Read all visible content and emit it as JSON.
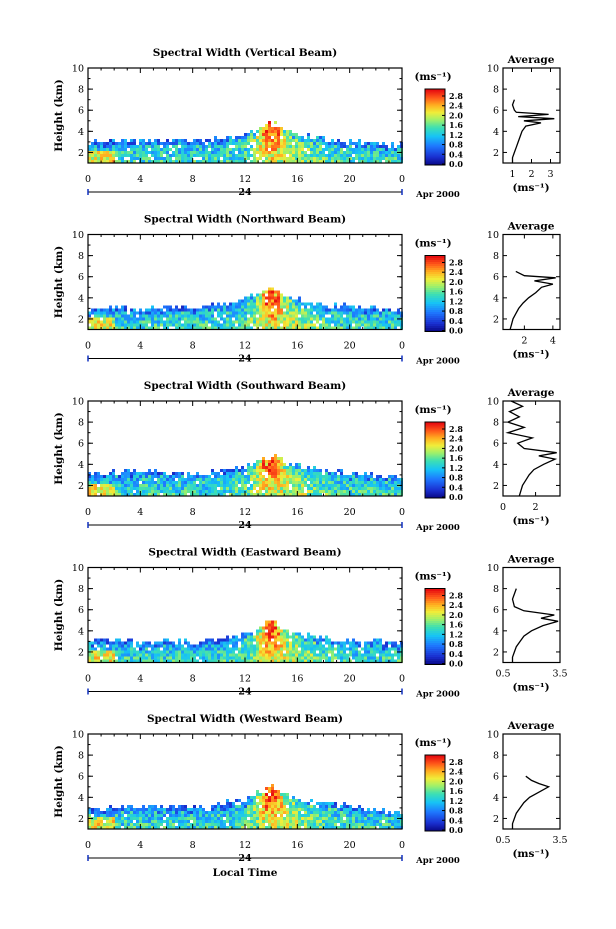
{
  "figure": {
    "date_label": "Apr 2000",
    "day_label": "24",
    "xlabel": "Local Time",
    "ylabel": "Height (km)",
    "colorbar_unit": "(ms⁻¹)",
    "colorbar_ticks": [
      "2.8",
      "2.4",
      "2.0",
      "1.6",
      "1.2",
      "0.8",
      "0.4",
      "0.0"
    ],
    "avg_title": "Average",
    "avg_unit": "(ms⁻¹)"
  },
  "chart_data": [
    {
      "type": "heatmap",
      "title": "Spectral Width (Vertical Beam)",
      "xlabel": "",
      "ylabel": "Height (km)",
      "x_ticks": [
        "0",
        "4",
        "8",
        "12",
        "16",
        "20",
        "0"
      ],
      "xlim": [
        0,
        24
      ],
      "y_ticks": [
        "2",
        "4",
        "6",
        "8",
        "10"
      ],
      "ylim": [
        1,
        10
      ],
      "colorbar_range": [
        0.0,
        3.0
      ],
      "top_height_profile": [
        [
          0,
          3.1
        ],
        [
          2,
          3.3
        ],
        [
          4,
          3.2
        ],
        [
          6,
          3.4
        ],
        [
          8,
          3.3
        ],
        [
          10,
          3.5
        ],
        [
          12,
          4.0
        ],
        [
          13,
          4.5
        ],
        [
          14,
          5.0
        ],
        [
          15,
          4.3
        ],
        [
          16,
          3.8
        ],
        [
          18,
          3.4
        ],
        [
          20,
          3.2
        ],
        [
          22,
          3.0
        ],
        [
          24,
          2.8
        ]
      ],
      "average_profile": {
        "x_ticks": [
          "1",
          "2",
          "3"
        ],
        "xlim": [
          0.5,
          3.5
        ],
        "ylim": [
          1,
          10
        ],
        "points": [
          [
            1.0,
            1.0
          ],
          [
            1.0,
            1.5
          ],
          [
            1.1,
            2.0
          ],
          [
            1.2,
            2.5
          ],
          [
            1.3,
            3.0
          ],
          [
            1.4,
            3.5
          ],
          [
            1.5,
            4.0
          ],
          [
            1.7,
            4.5
          ],
          [
            2.5,
            4.8
          ],
          [
            1.6,
            5.0
          ],
          [
            3.2,
            5.2
          ],
          [
            1.3,
            5.4
          ],
          [
            2.9,
            5.6
          ],
          [
            1.2,
            5.8
          ],
          [
            1.1,
            6.0
          ],
          [
            1.0,
            6.5
          ],
          [
            1.1,
            7.0
          ]
        ]
      }
    },
    {
      "type": "heatmap",
      "title": "Spectral Width (Northward Beam)",
      "xlabel": "",
      "ylabel": "Height (km)",
      "x_ticks": [
        "0",
        "4",
        "8",
        "12",
        "16",
        "20",
        "0"
      ],
      "xlim": [
        0,
        24
      ],
      "y_ticks": [
        "2",
        "4",
        "6",
        "8",
        "10"
      ],
      "ylim": [
        1,
        10
      ],
      "colorbar_range": [
        0.0,
        3.0
      ],
      "top_height_profile": [
        [
          0,
          3.0
        ],
        [
          2,
          3.2
        ],
        [
          4,
          3.1
        ],
        [
          6,
          3.3
        ],
        [
          8,
          3.2
        ],
        [
          10,
          3.5
        ],
        [
          12,
          4.0
        ],
        [
          13,
          4.6
        ],
        [
          14,
          5.2
        ],
        [
          15,
          4.4
        ],
        [
          16,
          3.9
        ],
        [
          18,
          3.5
        ],
        [
          20,
          3.3
        ],
        [
          22,
          3.1
        ],
        [
          24,
          2.9
        ]
      ],
      "average_profile": {
        "x_ticks": [
          "2",
          "4"
        ],
        "xlim": [
          0.5,
          4.5
        ],
        "ylim": [
          1,
          10
        ],
        "points": [
          [
            1.0,
            1.0
          ],
          [
            1.1,
            1.5
          ],
          [
            1.2,
            2.0
          ],
          [
            1.4,
            2.5
          ],
          [
            1.6,
            3.0
          ],
          [
            1.9,
            3.5
          ],
          [
            2.3,
            4.0
          ],
          [
            2.8,
            4.5
          ],
          [
            3.2,
            5.0
          ],
          [
            4.0,
            5.3
          ],
          [
            2.7,
            5.6
          ],
          [
            4.2,
            5.9
          ],
          [
            2.0,
            6.1
          ],
          [
            1.4,
            6.5
          ]
        ]
      }
    },
    {
      "type": "heatmap",
      "title": "Spectral Width (Southward Beam)",
      "xlabel": "",
      "ylabel": "Height (km)",
      "x_ticks": [
        "0",
        "4",
        "8",
        "12",
        "16",
        "20",
        "0"
      ],
      "xlim": [
        0,
        24
      ],
      "y_ticks": [
        "2",
        "4",
        "6",
        "8",
        "10"
      ],
      "ylim": [
        1,
        10
      ],
      "colorbar_range": [
        0.0,
        3.0
      ],
      "top_height_profile": [
        [
          0,
          3.2
        ],
        [
          2,
          3.4
        ],
        [
          4,
          3.6
        ],
        [
          6,
          3.4
        ],
        [
          8,
          3.3
        ],
        [
          10,
          3.5
        ],
        [
          12,
          4.0
        ],
        [
          13,
          4.6
        ],
        [
          14,
          5.0
        ],
        [
          15,
          4.4
        ],
        [
          16,
          3.9
        ],
        [
          18,
          3.6
        ],
        [
          20,
          3.3
        ],
        [
          22,
          3.1
        ],
        [
          24,
          3.0
        ]
      ],
      "average_profile": {
        "x_ticks": [
          "0",
          "2"
        ],
        "xlim": [
          0,
          3.5
        ],
        "ylim": [
          1,
          10
        ],
        "points": [
          [
            1.0,
            1.0
          ],
          [
            1.1,
            1.5
          ],
          [
            1.2,
            2.0
          ],
          [
            1.4,
            2.5
          ],
          [
            1.6,
            3.0
          ],
          [
            1.9,
            3.5
          ],
          [
            2.5,
            4.0
          ],
          [
            3.2,
            4.5
          ],
          [
            2.2,
            4.8
          ],
          [
            3.3,
            5.1
          ],
          [
            1.3,
            5.5
          ],
          [
            0.9,
            6.0
          ],
          [
            1.8,
            6.5
          ],
          [
            0.3,
            7.0
          ],
          [
            1.3,
            7.5
          ],
          [
            0.3,
            8.0
          ],
          [
            1.0,
            8.5
          ],
          [
            0.4,
            9.0
          ],
          [
            1.2,
            9.5
          ],
          [
            0.5,
            10.0
          ]
        ]
      }
    },
    {
      "type": "heatmap",
      "title": "Spectral Width (Eastward Beam)",
      "xlabel": "",
      "ylabel": "Height (km)",
      "x_ticks": [
        "0",
        "4",
        "8",
        "12",
        "16",
        "20",
        "0"
      ],
      "xlim": [
        0,
        24
      ],
      "y_ticks": [
        "2",
        "4",
        "6",
        "8",
        "10"
      ],
      "ylim": [
        1,
        10
      ],
      "colorbar_range": [
        0.0,
        3.0
      ],
      "top_height_profile": [
        [
          0,
          3.1
        ],
        [
          2,
          3.3
        ],
        [
          4,
          3.1
        ],
        [
          6,
          3.2
        ],
        [
          8,
          3.1
        ],
        [
          10,
          3.4
        ],
        [
          12,
          3.9
        ],
        [
          13,
          4.5
        ],
        [
          14,
          5.1
        ],
        [
          15,
          4.3
        ],
        [
          16,
          3.8
        ],
        [
          18,
          3.4
        ],
        [
          20,
          3.2
        ],
        [
          22,
          3.1
        ],
        [
          24,
          2.9
        ]
      ],
      "average_profile": {
        "x_ticks": [
          "0.5",
          "3.5"
        ],
        "xlim": [
          0.5,
          3.5
        ],
        "ylim": [
          1,
          10
        ],
        "points": [
          [
            1.0,
            1.0
          ],
          [
            1.0,
            1.5
          ],
          [
            1.1,
            2.0
          ],
          [
            1.2,
            2.5
          ],
          [
            1.4,
            3.0
          ],
          [
            1.6,
            3.5
          ],
          [
            2.0,
            4.0
          ],
          [
            2.6,
            4.5
          ],
          [
            3.4,
            4.9
          ],
          [
            2.5,
            5.2
          ],
          [
            3.2,
            5.5
          ],
          [
            1.6,
            5.9
          ],
          [
            1.1,
            6.3
          ],
          [
            1.0,
            7.0
          ],
          [
            1.2,
            8.0
          ]
        ]
      }
    },
    {
      "type": "heatmap",
      "title": "Spectral Width (Westward Beam)",
      "xlabel": "Local Time",
      "ylabel": "Height (km)",
      "x_ticks": [
        "0",
        "4",
        "8",
        "12",
        "16",
        "20",
        "0"
      ],
      "xlim": [
        0,
        24
      ],
      "y_ticks": [
        "2",
        "4",
        "6",
        "8",
        "10"
      ],
      "ylim": [
        1,
        10
      ],
      "colorbar_range": [
        0.0,
        3.0
      ],
      "top_height_profile": [
        [
          0,
          3.0
        ],
        [
          2,
          3.2
        ],
        [
          4,
          3.3
        ],
        [
          6,
          3.2
        ],
        [
          8,
          3.1
        ],
        [
          10,
          3.5
        ],
        [
          12,
          4.0
        ],
        [
          13,
          4.6
        ],
        [
          14,
          5.3
        ],
        [
          15,
          4.4
        ],
        [
          16,
          3.9
        ],
        [
          18,
          3.5
        ],
        [
          20,
          3.3
        ],
        [
          22,
          3.0
        ],
        [
          24,
          2.8
        ]
      ],
      "average_profile": {
        "x_ticks": [
          "0.5",
          "3.5"
        ],
        "xlim": [
          0.5,
          3.5
        ],
        "ylim": [
          1,
          10
        ],
        "points": [
          [
            1.0,
            1.0
          ],
          [
            1.0,
            1.5
          ],
          [
            1.1,
            2.0
          ],
          [
            1.2,
            2.5
          ],
          [
            1.4,
            3.0
          ],
          [
            1.6,
            3.5
          ],
          [
            1.9,
            4.0
          ],
          [
            2.4,
            4.5
          ],
          [
            2.9,
            5.0
          ],
          [
            2.4,
            5.3
          ],
          [
            2.0,
            5.6
          ],
          [
            1.7,
            6.0
          ]
        ]
      }
    }
  ]
}
